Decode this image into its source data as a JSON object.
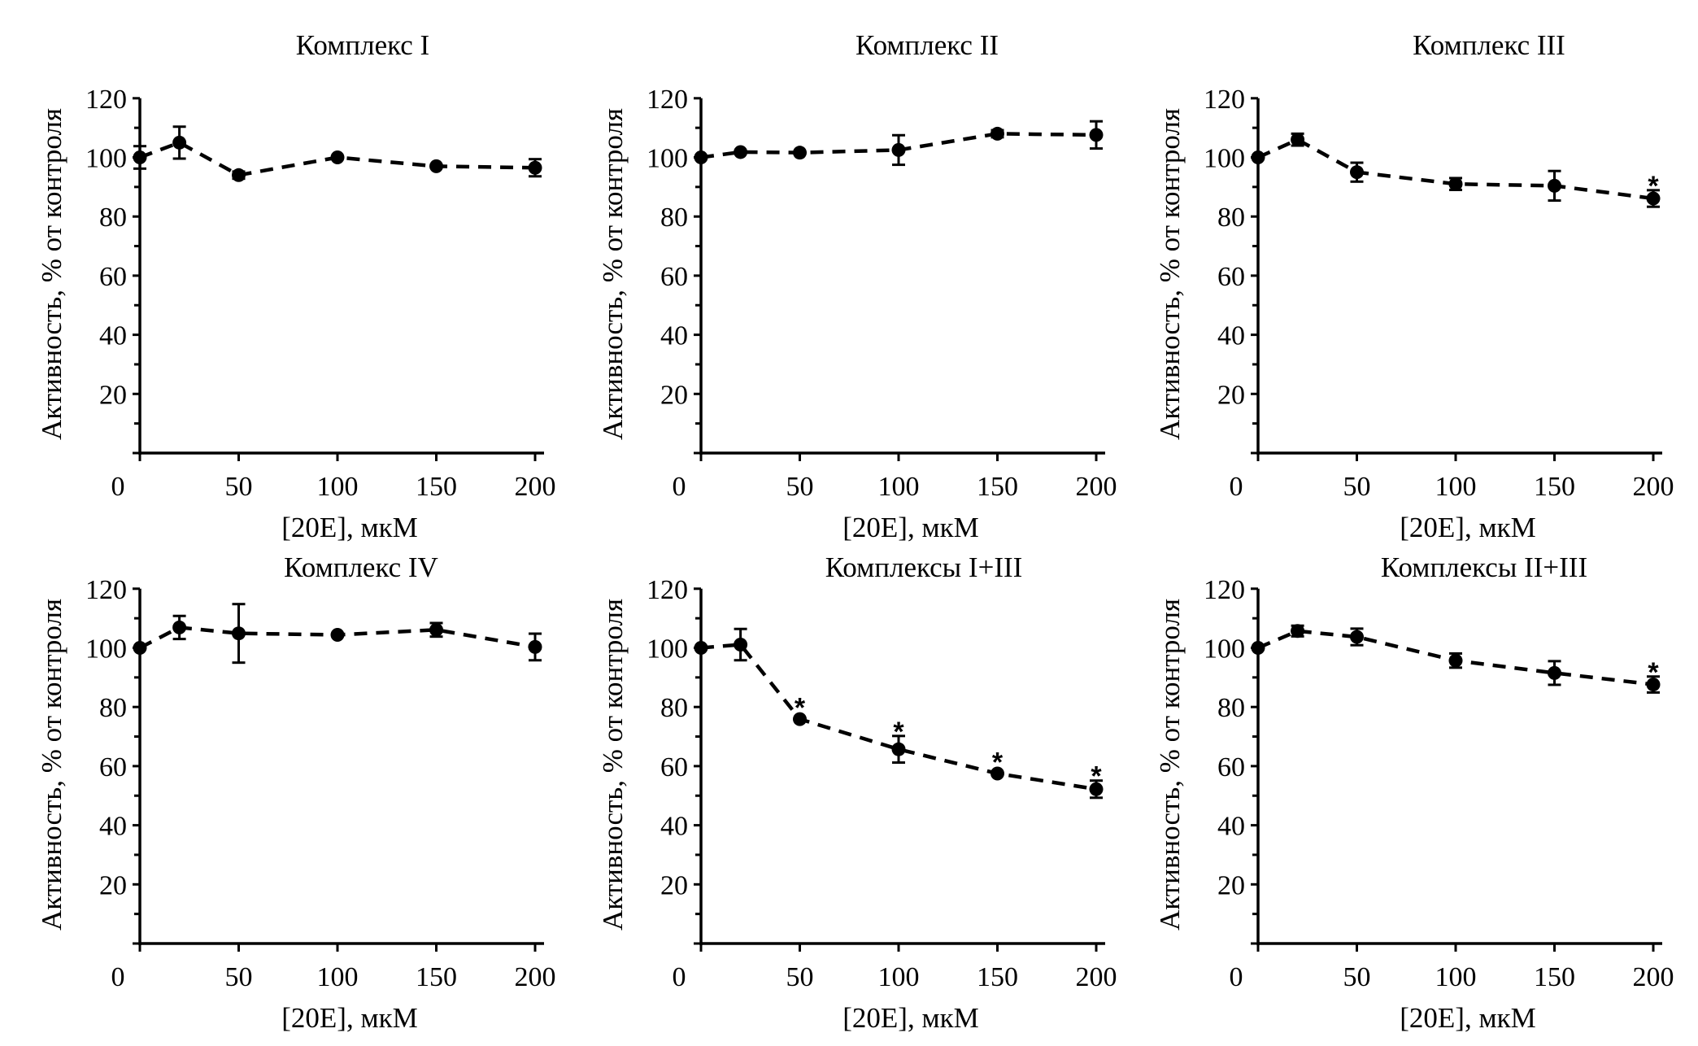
{
  "figure": {
    "panel_count": 6,
    "layout": "2 rows x 3 columns"
  },
  "chart_data": [
    {
      "type": "line",
      "title": "Комплекс I",
      "xlabel": "[20E], мкМ",
      "ylabel": "Активность, % от контроля",
      "x": [
        0,
        20,
        50,
        100,
        150,
        200
      ],
      "series": [
        {
          "name": "Комплекс I",
          "values": [
            100,
            105,
            94,
            100,
            97,
            96.5
          ],
          "errors": [
            3.8,
            5.4,
            1.2,
            0.8,
            0.8,
            2.9
          ],
          "significant": [
            false,
            false,
            false,
            false,
            false,
            false
          ]
        }
      ],
      "xticks": [
        "0",
        "50",
        "100",
        "150",
        "200"
      ],
      "yticks": [
        "20",
        "40",
        "60",
        "80",
        "100",
        "120"
      ],
      "xlim": [
        0,
        200
      ],
      "ylim": [
        0,
        120
      ],
      "grid": false,
      "line_style": "dashed",
      "marker": "circle"
    },
    {
      "type": "line",
      "title": "Комплекс II",
      "xlabel": "[20E], мкМ",
      "ylabel": "Активность, % от контроля",
      "x": [
        0,
        20,
        50,
        100,
        150,
        200
      ],
      "series": [
        {
          "name": "Комплекс II",
          "values": [
            100,
            101.8,
            101.6,
            102.5,
            108,
            107.6
          ],
          "errors": [
            0.8,
            0.8,
            0.8,
            5.0,
            1.2,
            4.6
          ],
          "significant": [
            false,
            false,
            false,
            false,
            false,
            false
          ]
        }
      ],
      "xticks": [
        "0",
        "50",
        "100",
        "150",
        "200"
      ],
      "yticks": [
        "20",
        "40",
        "60",
        "80",
        "100",
        "120"
      ],
      "xlim": [
        0,
        200
      ],
      "ylim": [
        0,
        120
      ],
      "grid": false,
      "line_style": "dashed",
      "marker": "circle"
    },
    {
      "type": "line",
      "title": "Комплекс III",
      "xlabel": "[20E], мкМ",
      "ylabel": "Активность, % от контроля",
      "x": [
        0,
        20,
        50,
        100,
        150,
        200
      ],
      "series": [
        {
          "name": "Комплекс III",
          "values": [
            100,
            106,
            95,
            91,
            90.4,
            86.1
          ],
          "errors": [
            0.8,
            2.0,
            3.2,
            2.0,
            5.0,
            2.8
          ],
          "significant": [
            false,
            false,
            false,
            false,
            false,
            true
          ]
        }
      ],
      "xticks": [
        "0",
        "50",
        "100",
        "150",
        "200"
      ],
      "yticks": [
        "20",
        "40",
        "60",
        "80",
        "100",
        "120"
      ],
      "xlim": [
        0,
        200
      ],
      "ylim": [
        0,
        120
      ],
      "grid": false,
      "line_style": "dashed",
      "marker": "circle"
    },
    {
      "type": "line",
      "title": "Комплекс IV",
      "xlabel": "[20E], мкМ",
      "ylabel": "Активность, % от контроля",
      "x": [
        0,
        20,
        50,
        100,
        150,
        200
      ],
      "series": [
        {
          "name": "Комплекс IV",
          "values": [
            100,
            106.9,
            104.9,
            104.4,
            106.1,
            100.3
          ],
          "errors": [
            0.8,
            3.9,
            9.9,
            0.8,
            2.3,
            4.5
          ],
          "significant": [
            false,
            false,
            false,
            false,
            false,
            false
          ]
        }
      ],
      "xticks": [
        "0",
        "50",
        "100",
        "150",
        "200"
      ],
      "yticks": [
        "20",
        "40",
        "60",
        "80",
        "100",
        "120"
      ],
      "xlim": [
        0,
        200
      ],
      "ylim": [
        0,
        120
      ],
      "grid": false,
      "line_style": "dashed",
      "marker": "circle"
    },
    {
      "type": "line",
      "title": "Комплексы I+III",
      "xlabel": "[20E], мкМ",
      "ylabel": "Активность, % от контроля",
      "x": [
        0,
        20,
        50,
        100,
        150,
        200
      ],
      "series": [
        {
          "name": "Комплексы I+III",
          "values": [
            100,
            101.1,
            75.9,
            65.7,
            57.5,
            52.2
          ],
          "errors": [
            0.8,
            5.3,
            1.0,
            4.5,
            1.0,
            2.9
          ],
          "significant": [
            false,
            false,
            true,
            true,
            true,
            true
          ]
        }
      ],
      "xticks": [
        "0",
        "50",
        "100",
        "150",
        "200"
      ],
      "yticks": [
        "20",
        "40",
        "60",
        "80",
        "100",
        "120"
      ],
      "xlim": [
        0,
        200
      ],
      "ylim": [
        0,
        120
      ],
      "grid": false,
      "line_style": "dashed",
      "marker": "circle"
    },
    {
      "type": "line",
      "title": "Комплексы II+III",
      "xlabel": "[20E], мкМ",
      "ylabel": "Активность, % от контроля",
      "x": [
        0,
        20,
        50,
        100,
        150,
        200
      ],
      "series": [
        {
          "name": "Комплексы II+III",
          "values": [
            100,
            105.7,
            103.7,
            95.7,
            91.5,
            87.6
          ],
          "errors": [
            0.8,
            1.8,
            2.8,
            2.4,
            4.0,
            2.7
          ],
          "significant": [
            false,
            false,
            false,
            false,
            false,
            true
          ]
        }
      ],
      "xticks": [
        "0",
        "50",
        "100",
        "150",
        "200"
      ],
      "yticks": [
        "20",
        "40",
        "60",
        "80",
        "100",
        "120"
      ],
      "xlim": [
        0,
        200
      ],
      "ylim": [
        0,
        120
      ],
      "grid": false,
      "line_style": "dashed",
      "marker": "circle"
    }
  ],
  "significance_marker": "*"
}
